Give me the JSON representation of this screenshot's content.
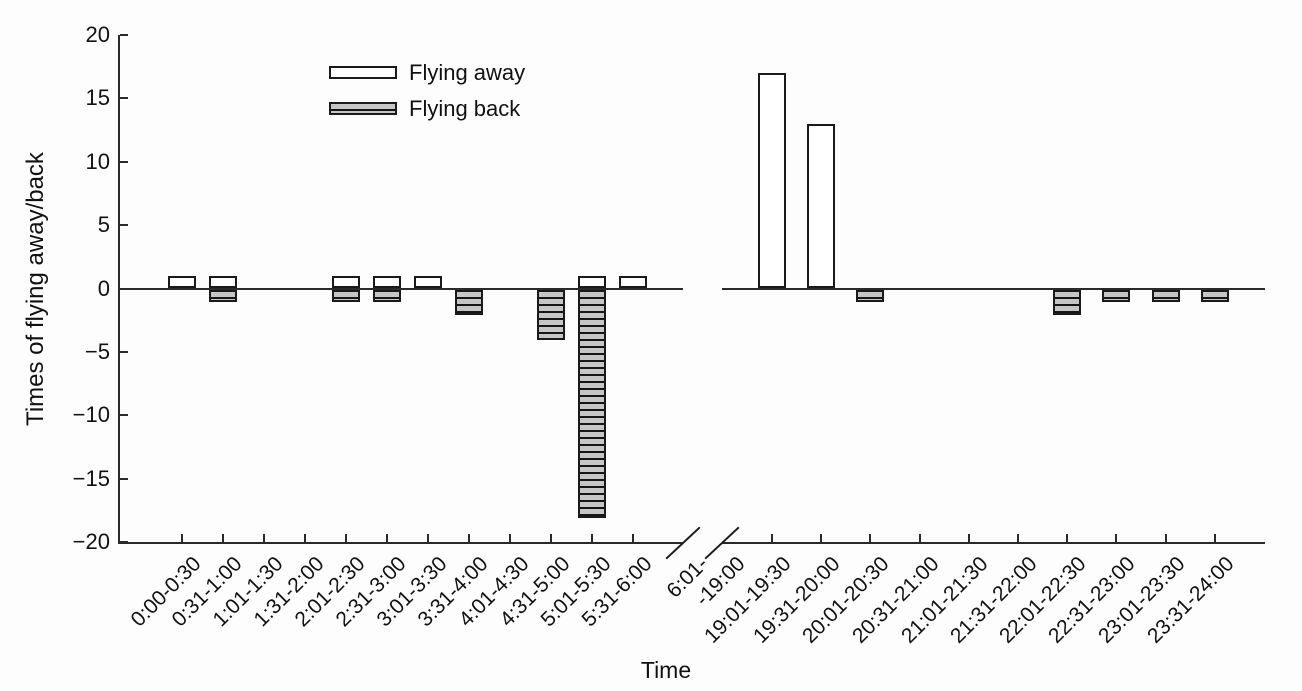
{
  "chart_data": {
    "type": "bar",
    "title": "",
    "xlabel": "Time",
    "ylabel": "Times of flying away/back",
    "ylim": [
      -20,
      20
    ],
    "yticks": [
      -20,
      -15,
      -10,
      -5,
      0,
      5,
      10,
      15,
      20
    ],
    "grid": false,
    "legend_position": "upper-left-inside",
    "legend": [
      {
        "label": "Flying away",
        "style": "white"
      },
      {
        "label": "Flying back",
        "style": "hatched-gray"
      }
    ],
    "axis_break": {
      "left_label": "6:01-",
      "right_label": "-19:00"
    },
    "panels": [
      {
        "name": "early-morning",
        "categories": [
          "0:00-0:30",
          "0:31-1:00",
          "1:01-1:30",
          "1:31-2:00",
          "2:01-2:30",
          "2:31-3:00",
          "3:01-3:30",
          "3:31-4:00",
          "4:01-4:30",
          "4:31-5:00",
          "5:01-5:30",
          "5:31-6:00"
        ],
        "series": [
          {
            "name": "Flying away",
            "values": [
              1,
              1,
              0,
              0,
              1,
              1,
              1,
              0,
              0,
              0,
              1,
              1
            ]
          },
          {
            "name": "Flying back",
            "values": [
              0,
              -1,
              0,
              0,
              -1,
              -1,
              0,
              -2,
              0,
              -4,
              -18,
              0
            ]
          }
        ]
      },
      {
        "name": "evening",
        "categories": [
          "19:01-19:30",
          "19:31-20:00",
          "20:01-20:30",
          "20:31-21:00",
          "21:01-21:30",
          "21:31-22:00",
          "22:01-22:30",
          "22:31-23:00",
          "23:01-23:30",
          "23:31-24:00"
        ],
        "series": [
          {
            "name": "Flying away",
            "values": [
              17,
              13,
              0,
              0,
              0,
              0,
              0,
              0,
              0,
              0
            ]
          },
          {
            "name": "Flying back",
            "values": [
              0,
              0,
              -1,
              0,
              0,
              0,
              -2,
              -1,
              -1,
              -1
            ]
          }
        ]
      }
    ],
    "colors": {
      "bar_edge": "#1a1a1a",
      "flying_away_fill": "#ffffff",
      "flying_back_fill": "#c6c6c6",
      "axis": "#2a2a2a"
    }
  }
}
